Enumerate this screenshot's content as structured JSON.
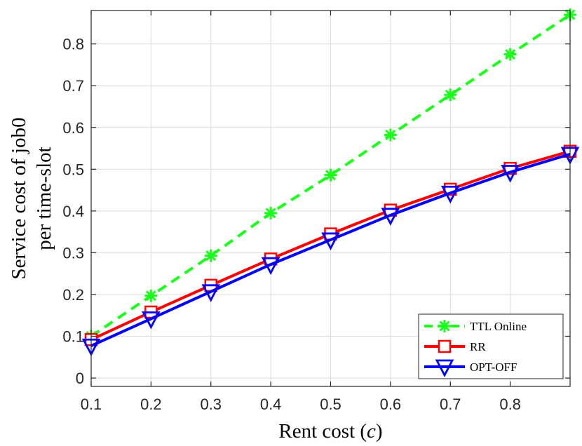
{
  "chart_data": {
    "type": "line",
    "xlabel": "Rent cost (c)",
    "ylabel_lines": [
      "Service cost of job0",
      "per time-slot"
    ],
    "xlim": [
      0.1,
      0.9
    ],
    "ylim": [
      -0.02,
      0.88
    ],
    "xticks": [
      0.1,
      0.2,
      0.3,
      0.4,
      0.5,
      0.6,
      0.7,
      0.8
    ],
    "xtick_labels": [
      "0.1",
      "0.2",
      "0.3",
      "0.4",
      "0.5",
      "0.6",
      "0.7",
      "0.8"
    ],
    "yticks": [
      0,
      0.1,
      0.2,
      0.3,
      0.4,
      0.5,
      0.6,
      0.7,
      0.8
    ],
    "ytick_labels": [
      "0",
      "0.1",
      "0.2",
      "0.3",
      "0.4",
      "0.5",
      "0.6",
      "0.7",
      "0.8"
    ],
    "grid": true,
    "legend_position": "bottom-right",
    "x": [
      0.1,
      0.2,
      0.3,
      0.4,
      0.5,
      0.6,
      0.7,
      0.8,
      0.9
    ],
    "series": [
      {
        "name": "TTL Online",
        "values": [
          0.1,
          0.197,
          0.293,
          0.395,
          0.486,
          0.582,
          0.678,
          0.775,
          0.87
        ],
        "color": "#1aff1a",
        "line_style": "dashed",
        "marker": "asterisk"
      },
      {
        "name": "RR",
        "values": [
          0.092,
          0.158,
          0.222,
          0.285,
          0.345,
          0.402,
          0.452,
          0.502,
          0.543
        ],
        "color": "#ff0000",
        "line_style": "solid",
        "marker": "square"
      },
      {
        "name": "OPT-OFF",
        "values": [
          0.077,
          0.142,
          0.207,
          0.272,
          0.331,
          0.39,
          0.443,
          0.493,
          0.536
        ],
        "color": "#0000ff",
        "line_style": "solid",
        "marker": "triangle-down"
      }
    ]
  }
}
